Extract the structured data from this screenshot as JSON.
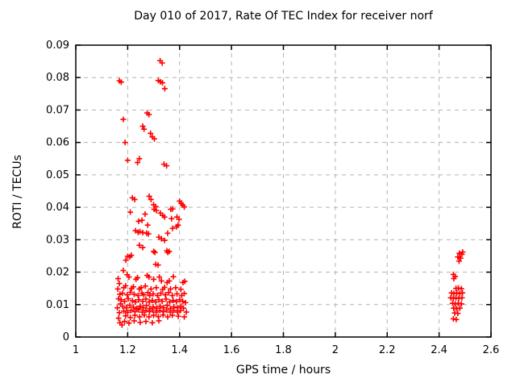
{
  "chart_data": {
    "type": "scatter",
    "title": "Day 010 of 2017, Rate Of TEC Index for receiver norf",
    "xlabel": "GPS time / hours",
    "ylabel": "ROTI / TECUs",
    "xlim": [
      1,
      2.6
    ],
    "ylim": [
      0,
      0.09
    ],
    "xticks": [
      1,
      1.2,
      1.4,
      1.6,
      1.8,
      2,
      2.2,
      2.4,
      2.6
    ],
    "xtick_labels": [
      "1",
      "1.2",
      "1.4",
      "1.6",
      "1.8",
      "2",
      "2.2",
      "2.4",
      "2.6"
    ],
    "yticks": [
      0,
      0.01,
      0.02,
      0.03,
      0.04,
      0.05,
      0.06,
      0.07,
      0.08,
      0.09
    ],
    "ytick_labels": [
      "0",
      "0.01",
      "0.02",
      "0.03",
      "0.04",
      "0.05",
      "0.06",
      "0.07",
      "0.08",
      "0.09"
    ],
    "grid": true,
    "grid_style": "dashed",
    "grid_color": "#b3b3b3",
    "axis_color": "#000000",
    "background_color": "#ffffff",
    "legend": "none",
    "marker": {
      "shape": "plus",
      "color": "#ff0000",
      "size": 7
    },
    "series": [
      {
        "name": "ROTI",
        "points": [
          [
            1.325,
            0.0852
          ],
          [
            1.333,
            0.0845
          ],
          [
            1.168,
            0.079
          ],
          [
            1.175,
            0.0786
          ],
          [
            1.318,
            0.0791
          ],
          [
            1.326,
            0.0787
          ],
          [
            1.334,
            0.0784
          ],
          [
            1.343,
            0.0766
          ],
          [
            1.275,
            0.0691
          ],
          [
            1.282,
            0.0686
          ],
          [
            1.183,
            0.0671
          ],
          [
            1.258,
            0.065
          ],
          [
            1.263,
            0.0641
          ],
          [
            1.288,
            0.0628
          ],
          [
            1.295,
            0.0617
          ],
          [
            1.303,
            0.0611
          ],
          [
            1.19,
            0.06
          ],
          [
            1.2,
            0.0545
          ],
          [
            1.245,
            0.055
          ],
          [
            1.238,
            0.0538
          ],
          [
            1.34,
            0.0533
          ],
          [
            1.35,
            0.0528
          ],
          [
            1.218,
            0.0429
          ],
          [
            1.227,
            0.0424
          ],
          [
            1.283,
            0.0434
          ],
          [
            1.29,
            0.0424
          ],
          [
            1.3,
            0.0408
          ],
          [
            1.308,
            0.0402
          ],
          [
            1.373,
            0.0395
          ],
          [
            1.4,
            0.0419
          ],
          [
            1.406,
            0.0412
          ],
          [
            1.412,
            0.0407
          ],
          [
            1.418,
            0.0401
          ],
          [
            1.21,
            0.0385
          ],
          [
            1.267,
            0.0379
          ],
          [
            1.302,
            0.0394
          ],
          [
            1.31,
            0.039
          ],
          [
            1.326,
            0.0382
          ],
          [
            1.335,
            0.0375
          ],
          [
            1.342,
            0.037
          ],
          [
            1.366,
            0.0394
          ],
          [
            1.369,
            0.0365
          ],
          [
            1.39,
            0.037
          ],
          [
            1.398,
            0.0363
          ],
          [
            1.242,
            0.0357
          ],
          [
            1.255,
            0.036
          ],
          [
            1.277,
            0.0345
          ],
          [
            1.23,
            0.0328
          ],
          [
            1.24,
            0.0323
          ],
          [
            1.247,
            0.0325
          ],
          [
            1.258,
            0.0322
          ],
          [
            1.273,
            0.032
          ],
          [
            1.28,
            0.0318
          ],
          [
            1.32,
            0.0308
          ],
          [
            1.33,
            0.0303
          ],
          [
            1.342,
            0.0298
          ],
          [
            1.354,
            0.032
          ],
          [
            1.373,
            0.0335
          ],
          [
            1.388,
            0.034
          ],
          [
            1.394,
            0.0345
          ],
          [
            1.245,
            0.0283
          ],
          [
            1.258,
            0.0276
          ],
          [
            1.3,
            0.0264
          ],
          [
            1.305,
            0.0261
          ],
          [
            1.351,
            0.0266
          ],
          [
            1.354,
            0.0261
          ],
          [
            1.36,
            0.0264
          ],
          [
            1.2,
            0.0249
          ],
          [
            1.208,
            0.0247
          ],
          [
            1.214,
            0.0252
          ],
          [
            1.193,
            0.0237
          ],
          [
            1.308,
            0.0224
          ],
          [
            1.317,
            0.0222
          ],
          [
            1.183,
            0.0205
          ],
          [
            1.198,
            0.0192
          ],
          [
            1.376,
            0.0186
          ],
          [
            1.163,
            0.018
          ],
          [
            1.168,
            0.0165
          ],
          [
            1.162,
            0.0148
          ],
          [
            1.17,
            0.0132
          ],
          [
            1.165,
            0.0118
          ],
          [
            1.172,
            0.0102
          ],
          [
            1.16,
            0.009
          ],
          [
            1.168,
            0.0075
          ],
          [
            1.165,
            0.0058
          ],
          [
            1.17,
            0.0044
          ],
          [
            1.178,
            0.0037
          ],
          [
            1.205,
            0.0185
          ],
          [
            1.232,
            0.0178
          ],
          [
            1.238,
            0.0183
          ],
          [
            1.275,
            0.019
          ],
          [
            1.282,
            0.0185
          ],
          [
            1.3,
            0.0178
          ],
          [
            1.322,
            0.0185
          ],
          [
            1.33,
            0.0173
          ],
          [
            1.352,
            0.0168
          ],
          [
            1.36,
            0.0173
          ],
          [
            1.413,
            0.0168
          ],
          [
            1.42,
            0.0172
          ],
          [
            1.185,
            0.0152
          ],
          [
            1.192,
            0.0158
          ],
          [
            1.215,
            0.015
          ],
          [
            1.222,
            0.0155
          ],
          [
            1.245,
            0.0148
          ],
          [
            1.252,
            0.0152
          ],
          [
            1.268,
            0.0157
          ],
          [
            1.29,
            0.0148
          ],
          [
            1.31,
            0.0152
          ],
          [
            1.335,
            0.0147
          ],
          [
            1.342,
            0.0153
          ],
          [
            1.365,
            0.0148
          ],
          [
            1.385,
            0.0152
          ],
          [
            1.405,
            0.0147
          ],
          [
            1.18,
            0.0135
          ],
          [
            1.198,
            0.013
          ],
          [
            1.21,
            0.0138
          ],
          [
            1.225,
            0.0132
          ],
          [
            1.24,
            0.0128
          ],
          [
            1.255,
            0.0135
          ],
          [
            1.262,
            0.013
          ],
          [
            1.278,
            0.0137
          ],
          [
            1.285,
            0.0128
          ],
          [
            1.298,
            0.0133
          ],
          [
            1.315,
            0.0128
          ],
          [
            1.328,
            0.0135
          ],
          [
            1.345,
            0.013
          ],
          [
            1.358,
            0.0137
          ],
          [
            1.372,
            0.0128
          ],
          [
            1.39,
            0.0133
          ],
          [
            1.408,
            0.0128
          ],
          [
            1.418,
            0.0134
          ],
          [
            1.175,
            0.0115
          ],
          [
            1.188,
            0.011
          ],
          [
            1.202,
            0.0118
          ],
          [
            1.218,
            0.0112
          ],
          [
            1.23,
            0.0108
          ],
          [
            1.243,
            0.0115
          ],
          [
            1.258,
            0.011
          ],
          [
            1.27,
            0.0117
          ],
          [
            1.283,
            0.0108
          ],
          [
            1.295,
            0.0113
          ],
          [
            1.308,
            0.0108
          ],
          [
            1.32,
            0.0115
          ],
          [
            1.333,
            0.011
          ],
          [
            1.348,
            0.0117
          ],
          [
            1.362,
            0.0108
          ],
          [
            1.375,
            0.0113
          ],
          [
            1.388,
            0.0109
          ],
          [
            1.4,
            0.0115
          ],
          [
            1.412,
            0.011
          ],
          [
            1.423,
            0.0106
          ],
          [
            1.18,
            0.0095
          ],
          [
            1.195,
            0.009
          ],
          [
            1.208,
            0.0098
          ],
          [
            1.222,
            0.0092
          ],
          [
            1.235,
            0.0088
          ],
          [
            1.248,
            0.0095
          ],
          [
            1.26,
            0.009
          ],
          [
            1.272,
            0.0097
          ],
          [
            1.285,
            0.0088
          ],
          [
            1.298,
            0.0093
          ],
          [
            1.312,
            0.0089
          ],
          [
            1.325,
            0.0095
          ],
          [
            1.338,
            0.009
          ],
          [
            1.352,
            0.0097
          ],
          [
            1.365,
            0.0088
          ],
          [
            1.378,
            0.0093
          ],
          [
            1.392,
            0.009
          ],
          [
            1.405,
            0.0095
          ],
          [
            1.415,
            0.0089
          ],
          [
            1.185,
            0.008
          ],
          [
            1.2,
            0.0076
          ],
          [
            1.213,
            0.0082
          ],
          [
            1.228,
            0.0078
          ],
          [
            1.242,
            0.0084
          ],
          [
            1.256,
            0.0077
          ],
          [
            1.27,
            0.0082
          ],
          [
            1.284,
            0.0078
          ],
          [
            1.297,
            0.0083
          ],
          [
            1.31,
            0.0077
          ],
          [
            1.324,
            0.0082
          ],
          [
            1.338,
            0.0078
          ],
          [
            1.35,
            0.0083
          ],
          [
            1.364,
            0.0077
          ],
          [
            1.378,
            0.0082
          ],
          [
            1.392,
            0.0077
          ],
          [
            1.404,
            0.0082
          ],
          [
            1.426,
            0.0077
          ],
          [
            1.192,
            0.0065
          ],
          [
            1.21,
            0.006
          ],
          [
            1.228,
            0.0067
          ],
          [
            1.246,
            0.0062
          ],
          [
            1.264,
            0.0068
          ],
          [
            1.282,
            0.0062
          ],
          [
            1.3,
            0.0067
          ],
          [
            1.318,
            0.0063
          ],
          [
            1.336,
            0.0068
          ],
          [
            1.354,
            0.0062
          ],
          [
            1.372,
            0.0067
          ],
          [
            1.395,
            0.0064
          ],
          [
            1.418,
            0.0062
          ],
          [
            1.188,
            0.0048
          ],
          [
            1.205,
            0.0043
          ],
          [
            1.225,
            0.005
          ],
          [
            1.248,
            0.0045
          ],
          [
            1.27,
            0.0048
          ],
          [
            1.295,
            0.0044
          ],
          [
            1.32,
            0.005
          ],
          [
            2.491,
            0.0262
          ],
          [
            2.478,
            0.0258
          ],
          [
            2.488,
            0.0255
          ],
          [
            2.472,
            0.0247
          ],
          [
            2.483,
            0.0243
          ],
          [
            2.477,
            0.0234
          ],
          [
            2.455,
            0.0193
          ],
          [
            2.462,
            0.0187
          ],
          [
            2.457,
            0.018
          ],
          [
            2.465,
            0.015
          ],
          [
            2.474,
            0.0151
          ],
          [
            2.486,
            0.0149
          ],
          [
            2.448,
            0.0136
          ],
          [
            2.457,
            0.0134
          ],
          [
            2.468,
            0.0136
          ],
          [
            2.479,
            0.0134
          ],
          [
            2.49,
            0.0136
          ],
          [
            2.445,
            0.0121
          ],
          [
            2.455,
            0.0119
          ],
          [
            2.465,
            0.0121
          ],
          [
            2.476,
            0.0119
          ],
          [
            2.488,
            0.0121
          ],
          [
            2.452,
            0.0104
          ],
          [
            2.462,
            0.0102
          ],
          [
            2.474,
            0.0104
          ],
          [
            2.486,
            0.0102
          ],
          [
            2.456,
            0.0089
          ],
          [
            2.468,
            0.0087
          ],
          [
            2.48,
            0.0089
          ],
          [
            2.46,
            0.0074
          ],
          [
            2.472,
            0.0073
          ],
          [
            2.455,
            0.0056
          ],
          [
            2.466,
            0.0054
          ]
        ]
      }
    ]
  }
}
